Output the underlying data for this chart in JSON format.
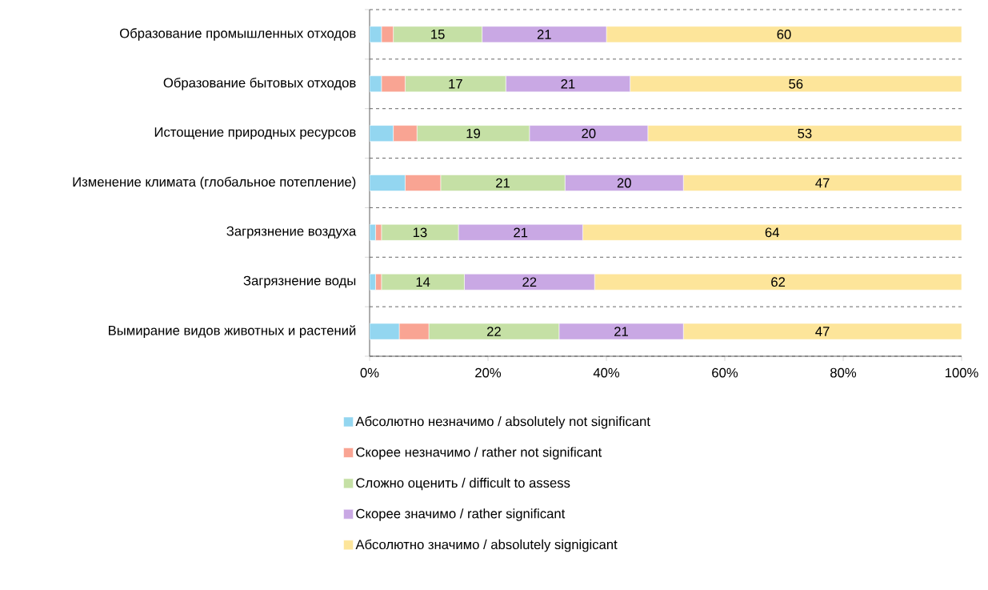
{
  "chart_data": {
    "type": "bar",
    "orientation": "horizontal",
    "stacked": true,
    "categories": [
      "Образование промышленных отходов",
      "Образование бытовых отходов",
      "Истощение природных ресурсов",
      "Изменение климата (глобальное потепление)",
      "Загрязнение воздуха",
      "Загрязнение воды",
      "Вымирание видов животных и растений"
    ],
    "series": [
      {
        "name": "Абсолютно незначимо / absolutely not significant",
        "color": "#93d6f0",
        "values": [
          2,
          2,
          4,
          6,
          1,
          1,
          5
        ]
      },
      {
        "name": "Скорее незначимо / rather not significant",
        "color": "#f9a493",
        "values": [
          2,
          4,
          4,
          6,
          1,
          1,
          5
        ]
      },
      {
        "name": "Сложно оценить / difficult to assess",
        "color": "#c5e0a5",
        "values": [
          15,
          17,
          19,
          21,
          13,
          14,
          22
        ],
        "value_labels": [
          "15",
          "17",
          "19",
          "21",
          "13",
          "14",
          "22"
        ]
      },
      {
        "name": "Скорее значимо / rather significant",
        "color": "#c9a8e4",
        "values": [
          21,
          21,
          20,
          20,
          21,
          22,
          21
        ],
        "value_labels": [
          "21",
          "21",
          "20",
          "20",
          "21",
          "22",
          "21"
        ]
      },
      {
        "name": "Абсолютно значимо / absolutely signigicant",
        "color": "#fde59a",
        "values": [
          60,
          56,
          53,
          47,
          64,
          62,
          47
        ],
        "value_labels": [
          "60",
          "56",
          "53",
          "47",
          "64",
          "62",
          "47"
        ]
      }
    ],
    "xlim": [
      0,
      100
    ],
    "xticks": [
      {
        "value": 0,
        "label": "0%"
      },
      {
        "value": 20,
        "label": "20%"
      },
      {
        "value": 40,
        "label": "40%"
      },
      {
        "value": 60,
        "label": "60%"
      },
      {
        "value": 80,
        "label": "80%"
      },
      {
        "value": 100,
        "label": "100%"
      }
    ],
    "grid": "y",
    "legend": "bottom"
  }
}
